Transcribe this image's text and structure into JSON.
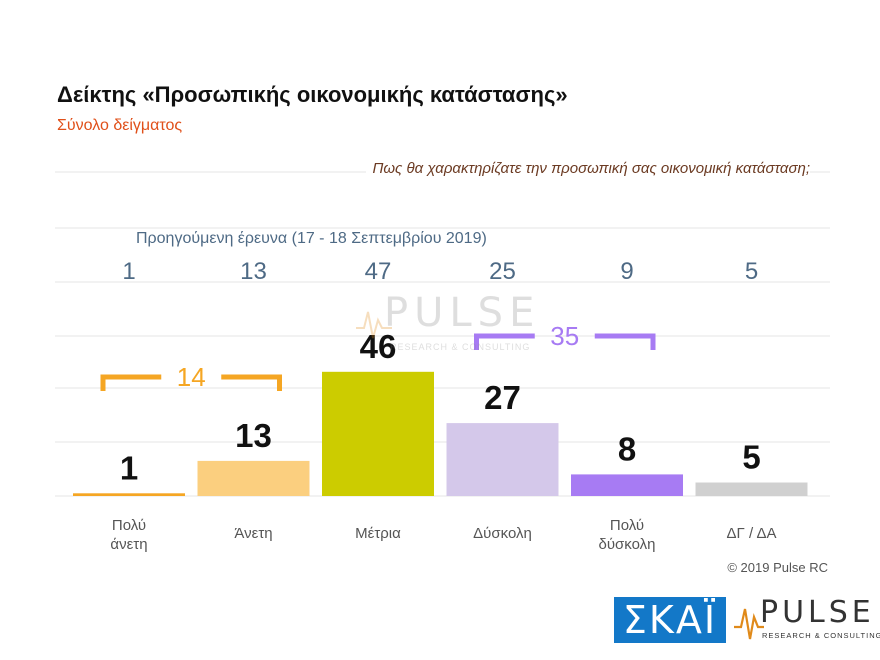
{
  "chart_data": {
    "type": "bar",
    "title": "Δείκτης «Προσωπικής οικονομικής κατάστασης»",
    "subtitle": "Σύνολο δείγματος",
    "question": "Πως θα χαρακτηρίζατε την προσωπική σας οικονομική κατάσταση;",
    "categories": [
      [
        "Πολύ",
        "άνετη"
      ],
      [
        "Άνετη"
      ],
      [
        "Μέτρια"
      ],
      [
        "Δύσκολη"
      ],
      [
        "Πολύ",
        "δύσκολη"
      ],
      [
        "ΔΓ / ΔΑ"
      ]
    ],
    "values": [
      1,
      13,
      46,
      27,
      8,
      5
    ],
    "value_labels": [
      "1",
      "13",
      "46",
      "27",
      "8",
      "5"
    ],
    "previous_label": "Προηγούμενη έρευνα  (17 - 18  Σεπτεμβρίου  2019)",
    "previous_values": [
      "1",
      "13",
      "47",
      "25",
      "9",
      "5"
    ],
    "bar_colors": [
      "#f5a623",
      "#fbcf7f",
      "#cccc00",
      "#d4c8ea",
      "#a77bf3",
      "#d0d0d0"
    ],
    "groups": [
      {
        "label": "14",
        "from": 0,
        "to": 1,
        "color": "#f5a623"
      },
      {
        "label": "35",
        "from": 3,
        "to": 4,
        "color": "#a77bf3"
      }
    ],
    "ylim": [
      0,
      50
    ],
    "grid": true
  },
  "copyright": "© 2019 Pulse RC",
  "logos": {
    "skai": "ΣΚΑΪ",
    "pulse_word": "PULSE",
    "pulse_sub": "RESEARCH & CONSULTING"
  }
}
